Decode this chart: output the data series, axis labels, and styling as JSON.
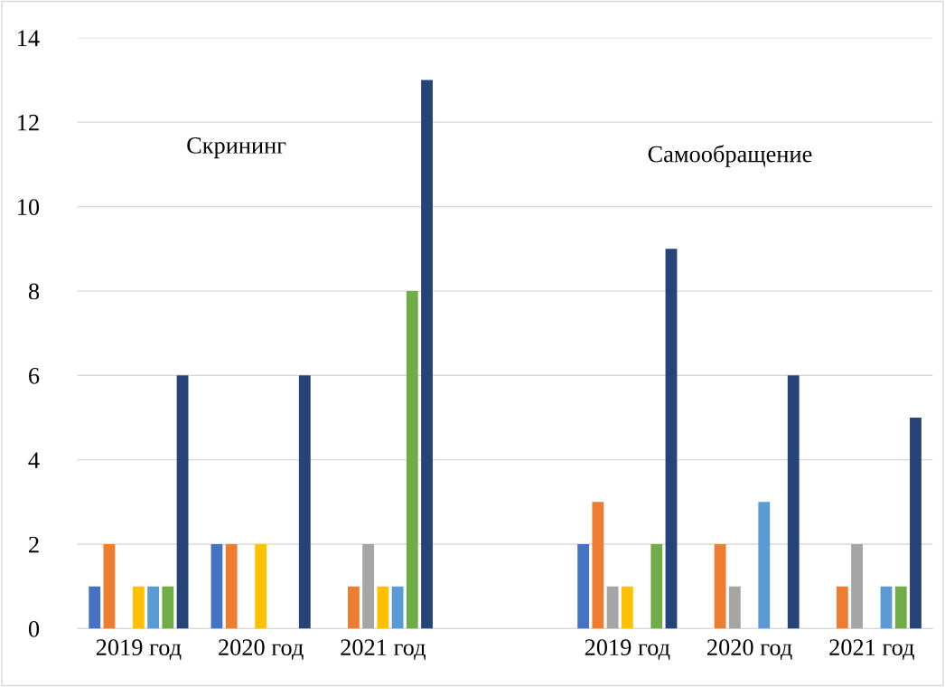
{
  "chart_data": {
    "type": "bar",
    "categories": [
      "2019 год",
      "2020 год",
      "2021 год",
      null,
      "2019 год",
      "2020 год",
      "2021 год"
    ],
    "series": [
      {
        "color": "#4472c4",
        "values": [
          1,
          2,
          null,
          null,
          2,
          null,
          null
        ]
      },
      {
        "color": "#ed7d31",
        "values": [
          2,
          2,
          1,
          null,
          3,
          2,
          1
        ]
      },
      {
        "color": "#a5a5a5",
        "values": [
          null,
          null,
          2,
          null,
          1,
          1,
          2
        ]
      },
      {
        "color": "#ffc000",
        "values": [
          1,
          2,
          1,
          null,
          1,
          null,
          null
        ]
      },
      {
        "color": "#5b9bd5",
        "values": [
          1,
          null,
          1,
          null,
          null,
          3,
          1
        ]
      },
      {
        "color": "#70ad47",
        "values": [
          1,
          null,
          8,
          null,
          2,
          null,
          1
        ]
      },
      {
        "color": "#264478",
        "values": [
          6,
          6,
          13,
          null,
          9,
          6,
          5
        ]
      }
    ],
    "annotations": [
      "Скрининг",
      "Самообращение"
    ],
    "ylim": [
      0,
      14
    ],
    "yticks": [
      0,
      2,
      4,
      6,
      8,
      10,
      12,
      14
    ],
    "grid": "y"
  }
}
